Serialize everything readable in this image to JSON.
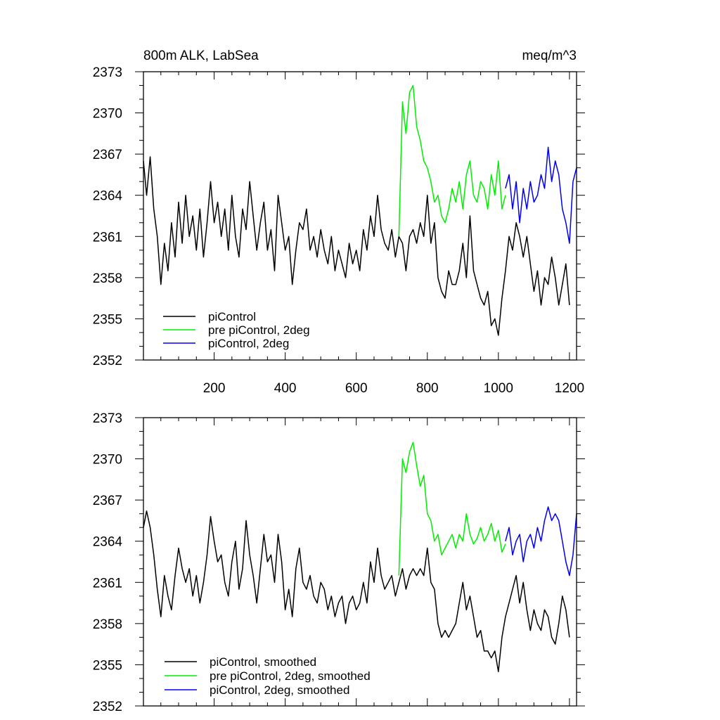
{
  "chart_data": [
    {
      "type": "line",
      "title": "800m ALK, LabSea",
      "units_label": "meq/m^3",
      "xlabel": "",
      "ylabel": "",
      "xlim": [
        1,
        1220
      ],
      "ylim": [
        2352,
        2373
      ],
      "xticks": [
        200,
        400,
        600,
        800,
        1000,
        1200
      ],
      "xtick_labels": [
        "200",
        "400",
        "600",
        "800",
        "1000",
        "1200"
      ],
      "yticks": [
        2352,
        2355,
        2358,
        2361,
        2364,
        2367,
        2370,
        2373
      ],
      "ytick_labels": [
        "2352",
        "2355",
        "2358",
        "2361",
        "2364",
        "2367",
        "2370",
        "2373"
      ],
      "legend_position": "bottom-left",
      "series": [
        {
          "name": "piControl",
          "color": "#000000",
          "x": [
            1,
            10,
            20,
            30,
            40,
            50,
            60,
            70,
            80,
            90,
            100,
            110,
            120,
            130,
            140,
            150,
            160,
            170,
            180,
            190,
            200,
            210,
            220,
            230,
            240,
            250,
            260,
            270,
            280,
            290,
            300,
            310,
            320,
            330,
            340,
            350,
            360,
            370,
            380,
            390,
            400,
            410,
            420,
            430,
            440,
            450,
            460,
            470,
            480,
            490,
            500,
            510,
            520,
            530,
            540,
            550,
            560,
            570,
            580,
            590,
            600,
            610,
            620,
            630,
            640,
            650,
            660,
            670,
            680,
            690,
            700,
            710,
            720,
            730,
            740,
            750,
            760,
            770,
            780,
            790,
            800,
            810,
            820,
            830,
            840,
            850,
            860,
            870,
            880,
            890,
            900,
            910,
            920,
            930,
            940,
            950,
            960,
            970,
            980,
            990,
            1000,
            1010,
            1020,
            1030,
            1040,
            1050,
            1060,
            1070,
            1080,
            1090,
            1100,
            1110,
            1120,
            1130,
            1140,
            1150,
            1160,
            1170,
            1180,
            1190,
            1200
          ],
          "values": [
            2366.5,
            2364.0,
            2366.8,
            2363.0,
            2361.0,
            2357.5,
            2360.5,
            2358.5,
            2362.0,
            2359.5,
            2363.5,
            2360.5,
            2364.0,
            2361.0,
            2362.5,
            2360.0,
            2363.0,
            2359.5,
            2362.0,
            2365.0,
            2362.0,
            2363.5,
            2361.0,
            2363.0,
            2360.0,
            2364.0,
            2361.0,
            2359.5,
            2363.0,
            2361.5,
            2365.0,
            2362.5,
            2360.0,
            2362.0,
            2363.5,
            2360.0,
            2361.5,
            2358.5,
            2364.0,
            2362.0,
            2360.0,
            2361.0,
            2357.5,
            2360.0,
            2362.0,
            2361.5,
            2363.0,
            2360.0,
            2361.0,
            2359.5,
            2361.5,
            2360.0,
            2359.0,
            2361.0,
            2358.5,
            2360.0,
            2359.0,
            2358.0,
            2360.5,
            2359.0,
            2360.0,
            2358.5,
            2361.5,
            2360.0,
            2362.5,
            2361.0,
            2364.0,
            2361.5,
            2360.5,
            2360.0,
            2361.5,
            2359.5,
            2361.0,
            2360.5,
            2358.5,
            2361.0,
            2361.5,
            2360.5,
            2362.0,
            2361.0,
            2364.0,
            2360.5,
            2362.0,
            2358.0,
            2357.0,
            2356.5,
            2358.5,
            2357.5,
            2357.5,
            2358.5,
            2360.5,
            2358.0,
            2362.5,
            2358.5,
            2357.5,
            2356.5,
            2356.0,
            2357.0,
            2354.5,
            2355.0,
            2353.8,
            2356.5,
            2358.5,
            2361.0,
            2360.0,
            2362.0,
            2361.0,
            2359.5,
            2361.0,
            2359.0,
            2357.0,
            2358.5,
            2356.0,
            2358.0,
            2357.5,
            2359.5,
            2358.0,
            2356.0,
            2357.5,
            2359.0,
            2356.0
          ]
        },
        {
          "name": "pre piControl, 2deg",
          "color": "#00ee00",
          "x": [
            720,
            730,
            740,
            750,
            760,
            770,
            780,
            790,
            800,
            810,
            820,
            830,
            840,
            850,
            860,
            870,
            880,
            890,
            900,
            910,
            920,
            930,
            940,
            950,
            960,
            970,
            980,
            990,
            1000,
            1010,
            1020
          ],
          "values": [
            2361.0,
            2370.8,
            2368.5,
            2371.5,
            2372.0,
            2369.0,
            2368.0,
            2366.5,
            2366.0,
            2365.0,
            2363.5,
            2364.0,
            2362.5,
            2362.0,
            2363.0,
            2364.5,
            2363.5,
            2365.0,
            2363.0,
            2365.5,
            2366.5,
            2364.0,
            2363.5,
            2365.0,
            2364.5,
            2363.0,
            2365.5,
            2364.0,
            2366.5,
            2363.0,
            2364.0
          ]
        },
        {
          "name": "piControl, 2deg",
          "color": "#0000ee",
          "x": [
            1020,
            1030,
            1040,
            1050,
            1060,
            1070,
            1080,
            1090,
            1100,
            1110,
            1120,
            1130,
            1140,
            1150,
            1160,
            1170,
            1180,
            1190,
            1200,
            1210,
            1220
          ],
          "values": [
            2364.5,
            2365.5,
            2363.0,
            2365.0,
            2362.0,
            2364.5,
            2363.0,
            2365.0,
            2363.5,
            2364.0,
            2365.5,
            2364.5,
            2367.5,
            2365.0,
            2366.5,
            2365.5,
            2363.0,
            2362.0,
            2360.5,
            2365.0,
            2366.0
          ]
        }
      ]
    },
    {
      "type": "line",
      "title": "",
      "xlabel": "",
      "ylabel": "",
      "xlim": [
        1,
        1220
      ],
      "ylim": [
        2352,
        2373
      ],
      "xticks": [
        200,
        400,
        600,
        800,
        1000,
        1200
      ],
      "yticks": [
        2352,
        2355,
        2358,
        2361,
        2364,
        2367,
        2370,
        2373
      ],
      "ytick_labels": [
        "2352",
        "2355",
        "2358",
        "2361",
        "2364",
        "2367",
        "2370",
        "2373"
      ],
      "legend_position": "bottom-left",
      "series": [
        {
          "name": "piControl, smoothed",
          "color": "#000000",
          "x": [
            1,
            10,
            20,
            30,
            40,
            50,
            60,
            70,
            80,
            90,
            100,
            110,
            120,
            130,
            140,
            150,
            160,
            170,
            180,
            190,
            200,
            210,
            220,
            230,
            240,
            250,
            260,
            270,
            280,
            290,
            300,
            310,
            320,
            330,
            340,
            350,
            360,
            370,
            380,
            390,
            400,
            410,
            420,
            430,
            440,
            450,
            460,
            470,
            480,
            490,
            500,
            510,
            520,
            530,
            540,
            550,
            560,
            570,
            580,
            590,
            600,
            610,
            620,
            630,
            640,
            650,
            660,
            670,
            680,
            690,
            700,
            710,
            720,
            730,
            740,
            750,
            760,
            770,
            780,
            790,
            800,
            810,
            820,
            830,
            840,
            850,
            860,
            870,
            880,
            890,
            900,
            910,
            920,
            930,
            940,
            950,
            960,
            970,
            980,
            990,
            1000,
            1010,
            1020,
            1030,
            1040,
            1050,
            1060,
            1070,
            1080,
            1090,
            1100,
            1110,
            1120,
            1130,
            1140,
            1150,
            1160,
            1170,
            1180,
            1190,
            1200
          ],
          "values": [
            2365.0,
            2366.2,
            2365.0,
            2363.0,
            2360.5,
            2358.5,
            2361.5,
            2360.0,
            2359.0,
            2361.5,
            2363.5,
            2362.0,
            2361.0,
            2362.0,
            2360.0,
            2361.5,
            2359.5,
            2361.0,
            2363.0,
            2365.8,
            2364.0,
            2362.5,
            2363.0,
            2361.0,
            2360.0,
            2362.5,
            2364.0,
            2360.5,
            2362.0,
            2365.5,
            2363.0,
            2361.5,
            2359.5,
            2362.0,
            2364.5,
            2362.5,
            2363.0,
            2361.0,
            2364.5,
            2362.5,
            2359.0,
            2360.5,
            2358.5,
            2362.0,
            2363.5,
            2361.0,
            2360.5,
            2361.5,
            2360.0,
            2359.5,
            2361.0,
            2360.5,
            2359.0,
            2360.0,
            2358.5,
            2359.5,
            2360.0,
            2358.0,
            2359.5,
            2360.0,
            2359.0,
            2359.5,
            2361.0,
            2359.5,
            2362.5,
            2361.0,
            2363.5,
            2361.5,
            2360.5,
            2361.0,
            2361.5,
            2360.0,
            2361.0,
            2362.0,
            2360.5,
            2361.5,
            2362.0,
            2361.5,
            2362.0,
            2361.5,
            2363.5,
            2361.0,
            2360.5,
            2358.0,
            2357.0,
            2357.5,
            2357.0,
            2357.5,
            2358.0,
            2359.5,
            2361.0,
            2359.0,
            2360.0,
            2358.5,
            2357.0,
            2357.5,
            2356.0,
            2356.0,
            2355.5,
            2356.0,
            2354.5,
            2357.0,
            2358.5,
            2359.5,
            2360.5,
            2361.5,
            2359.5,
            2361.0,
            2359.0,
            2357.5,
            2359.0,
            2358.0,
            2357.5,
            2359.0,
            2358.5,
            2357.0,
            2356.5,
            2358.0,
            2360.0,
            2359.0,
            2357.0
          ]
        },
        {
          "name": "pre piControl, 2deg, smoothed",
          "color": "#00ee00",
          "x": [
            720,
            730,
            740,
            750,
            760,
            770,
            780,
            790,
            800,
            810,
            820,
            830,
            840,
            850,
            860,
            870,
            880,
            890,
            900,
            910,
            920,
            930,
            940,
            950,
            960,
            970,
            980,
            990,
            1000,
            1010,
            1020
          ],
          "values": [
            2361.5,
            2370.0,
            2369.0,
            2370.5,
            2371.2,
            2369.5,
            2368.0,
            2368.8,
            2366.0,
            2365.5,
            2364.0,
            2364.5,
            2363.0,
            2363.5,
            2364.0,
            2364.5,
            2363.5,
            2364.5,
            2364.0,
            2366.0,
            2364.5,
            2363.8,
            2364.2,
            2365.0,
            2364.0,
            2364.5,
            2365.3,
            2364.0,
            2364.8,
            2363.2,
            2363.8
          ]
        },
        {
          "name": "piControl, 2deg, smoothed",
          "color": "#0000ee",
          "x": [
            1020,
            1030,
            1040,
            1050,
            1060,
            1070,
            1080,
            1090,
            1100,
            1110,
            1120,
            1130,
            1140,
            1150,
            1160,
            1170,
            1180,
            1190,
            1200,
            1210,
            1220
          ],
          "values": [
            2364.0,
            2365.0,
            2363.0,
            2364.0,
            2364.5,
            2362.5,
            2364.0,
            2364.5,
            2363.5,
            2365.0,
            2364.0,
            2365.5,
            2366.5,
            2365.5,
            2366.0,
            2365.5,
            2364.0,
            2362.5,
            2361.5,
            2363.0,
            2366.0
          ]
        }
      ]
    }
  ]
}
